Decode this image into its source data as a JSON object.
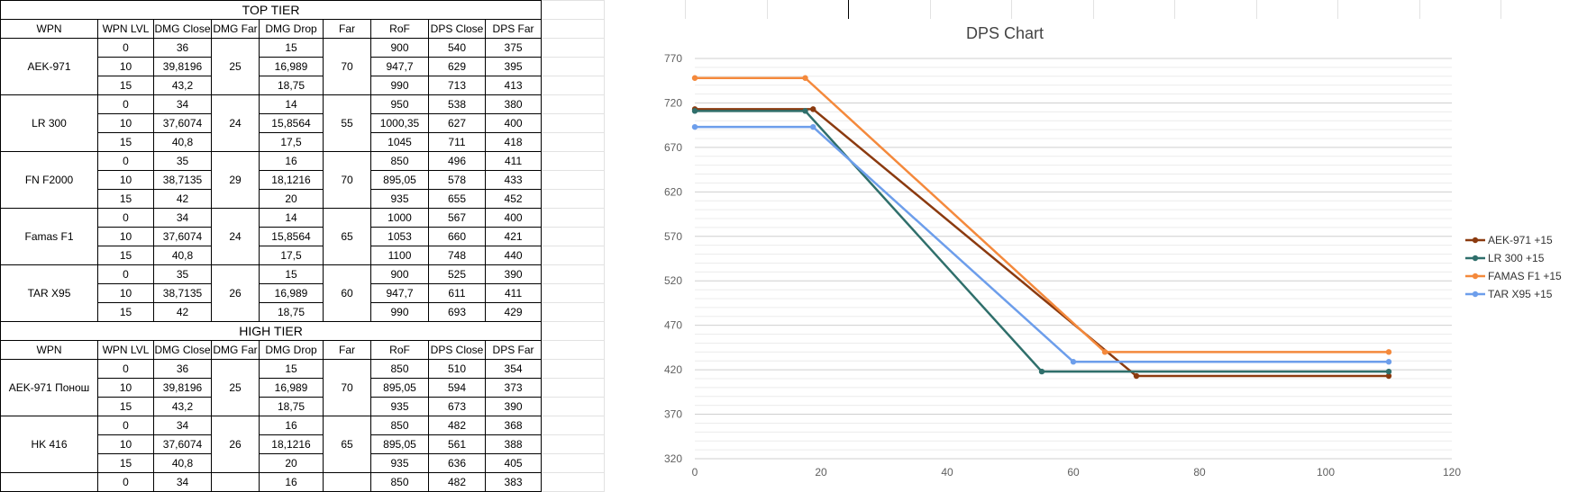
{
  "sheet": {
    "top_tier_title": "TOP TIER",
    "high_tier_title": "HIGH TIER",
    "headers": [
      "WPN",
      "WPN LVL",
      "DMG Close",
      "DMG Far",
      "DMG Drop",
      "Far",
      "RoF",
      "DPS Close",
      "DPS Far"
    ],
    "top_tier": [
      {
        "name": "AEK-971",
        "dmg_far": "25",
        "far": "70",
        "rows": [
          {
            "lvl": "0",
            "dmg_close": "36",
            "dmg_drop": "15",
            "rof": "900",
            "dps_close": "540",
            "dps_far": "375"
          },
          {
            "lvl": "10",
            "dmg_close": "39,8196",
            "dmg_drop": "16,989",
            "rof": "947,7",
            "dps_close": "629",
            "dps_far": "395"
          },
          {
            "lvl": "15",
            "dmg_close": "43,2",
            "dmg_drop": "18,75",
            "rof": "990",
            "dps_close": "713",
            "dps_far": "413"
          }
        ]
      },
      {
        "name": "LR 300",
        "dmg_far": "24",
        "far": "55",
        "rows": [
          {
            "lvl": "0",
            "dmg_close": "34",
            "dmg_drop": "14",
            "rof": "950",
            "dps_close": "538",
            "dps_far": "380"
          },
          {
            "lvl": "10",
            "dmg_close": "37,6074",
            "dmg_drop": "15,8564",
            "rof": "1000,35",
            "dps_close": "627",
            "dps_far": "400"
          },
          {
            "lvl": "15",
            "dmg_close": "40,8",
            "dmg_drop": "17,5",
            "rof": "1045",
            "dps_close": "711",
            "dps_far": "418"
          }
        ]
      },
      {
        "name": "FN F2000",
        "dmg_far": "29",
        "far": "70",
        "rows": [
          {
            "lvl": "0",
            "dmg_close": "35",
            "dmg_drop": "16",
            "rof": "850",
            "dps_close": "496",
            "dps_far": "411"
          },
          {
            "lvl": "10",
            "dmg_close": "38,7135",
            "dmg_drop": "18,1216",
            "rof": "895,05",
            "dps_close": "578",
            "dps_far": "433"
          },
          {
            "lvl": "15",
            "dmg_close": "42",
            "dmg_drop": "20",
            "rof": "935",
            "dps_close": "655",
            "dps_far": "452"
          }
        ]
      },
      {
        "name": "Famas F1",
        "dmg_far": "24",
        "far": "65",
        "rows": [
          {
            "lvl": "0",
            "dmg_close": "34",
            "dmg_drop": "14",
            "rof": "1000",
            "dps_close": "567",
            "dps_far": "400"
          },
          {
            "lvl": "10",
            "dmg_close": "37,6074",
            "dmg_drop": "15,8564",
            "rof": "1053",
            "dps_close": "660",
            "dps_far": "421"
          },
          {
            "lvl": "15",
            "dmg_close": "40,8",
            "dmg_drop": "17,5",
            "rof": "1100",
            "dps_close": "748",
            "dps_far": "440"
          }
        ]
      },
      {
        "name": "TAR X95",
        "dmg_far": "26",
        "far": "60",
        "rows": [
          {
            "lvl": "0",
            "dmg_close": "35",
            "dmg_drop": "15",
            "rof": "900",
            "dps_close": "525",
            "dps_far": "390"
          },
          {
            "lvl": "10",
            "dmg_close": "38,7135",
            "dmg_drop": "16,989",
            "rof": "947,7",
            "dps_close": "611",
            "dps_far": "411"
          },
          {
            "lvl": "15",
            "dmg_close": "42",
            "dmg_drop": "18,75",
            "rof": "990",
            "dps_close": "693",
            "dps_far": "429"
          }
        ]
      }
    ],
    "high_tier": [
      {
        "name": "AEK-971 Понош",
        "dmg_far": "25",
        "far": "70",
        "rows": [
          {
            "lvl": "0",
            "dmg_close": "36",
            "dmg_drop": "15",
            "rof": "850",
            "dps_close": "510",
            "dps_far": "354"
          },
          {
            "lvl": "10",
            "dmg_close": "39,8196",
            "dmg_drop": "16,989",
            "rof": "895,05",
            "dps_close": "594",
            "dps_far": "373"
          },
          {
            "lvl": "15",
            "dmg_close": "43,2",
            "dmg_drop": "18,75",
            "rof": "935",
            "dps_close": "673",
            "dps_far": "390"
          }
        ]
      },
      {
        "name": "HK 416",
        "dmg_far": "26",
        "far": "65",
        "rows": [
          {
            "lvl": "0",
            "dmg_close": "34",
            "dmg_drop": "16",
            "rof": "850",
            "dps_close": "482",
            "dps_far": "368"
          },
          {
            "lvl": "10",
            "dmg_close": "37,6074",
            "dmg_drop": "18,1216",
            "rof": "895,05",
            "dps_close": "561",
            "dps_far": "388"
          },
          {
            "lvl": "15",
            "dmg_close": "40,8",
            "dmg_drop": "20",
            "rof": "935",
            "dps_close": "636",
            "dps_far": "405"
          }
        ]
      }
    ],
    "partial_row": {
      "lvl": "0",
      "dmg_close": "34",
      "dmg_drop": "16",
      "rof": "850",
      "dps_close": "482",
      "dps_far": "383"
    }
  },
  "chart_data": {
    "type": "line",
    "title": "DPS Chart",
    "xlim": [
      0,
      120
    ],
    "ylim": [
      320,
      770
    ],
    "x_ticks": [
      0,
      20,
      40,
      60,
      80,
      100,
      120
    ],
    "y_ticks": [
      320,
      370,
      420,
      470,
      520,
      570,
      620,
      670,
      720,
      770
    ],
    "grid": true,
    "legend_position": "right",
    "series": [
      {
        "name": "AEK-971 +15",
        "color": "#8b3a0f",
        "points": [
          [
            0,
            713
          ],
          [
            18.75,
            713
          ],
          [
            70,
            413
          ],
          [
            110,
            413
          ]
        ]
      },
      {
        "name": "LR 300 +15",
        "color": "#2f6f6b",
        "points": [
          [
            0,
            711
          ],
          [
            17.5,
            711
          ],
          [
            55,
            418
          ],
          [
            110,
            418
          ]
        ]
      },
      {
        "name": "FAMAS F1 +15",
        "color": "#f4893c",
        "points": [
          [
            0,
            748
          ],
          [
            17.5,
            748
          ],
          [
            65,
            440
          ],
          [
            110,
            440
          ]
        ]
      },
      {
        "name": "TAR X95 +15",
        "color": "#6d9eeb",
        "points": [
          [
            0,
            693
          ],
          [
            18.75,
            693
          ],
          [
            60,
            429
          ],
          [
            110,
            429
          ]
        ]
      }
    ]
  }
}
